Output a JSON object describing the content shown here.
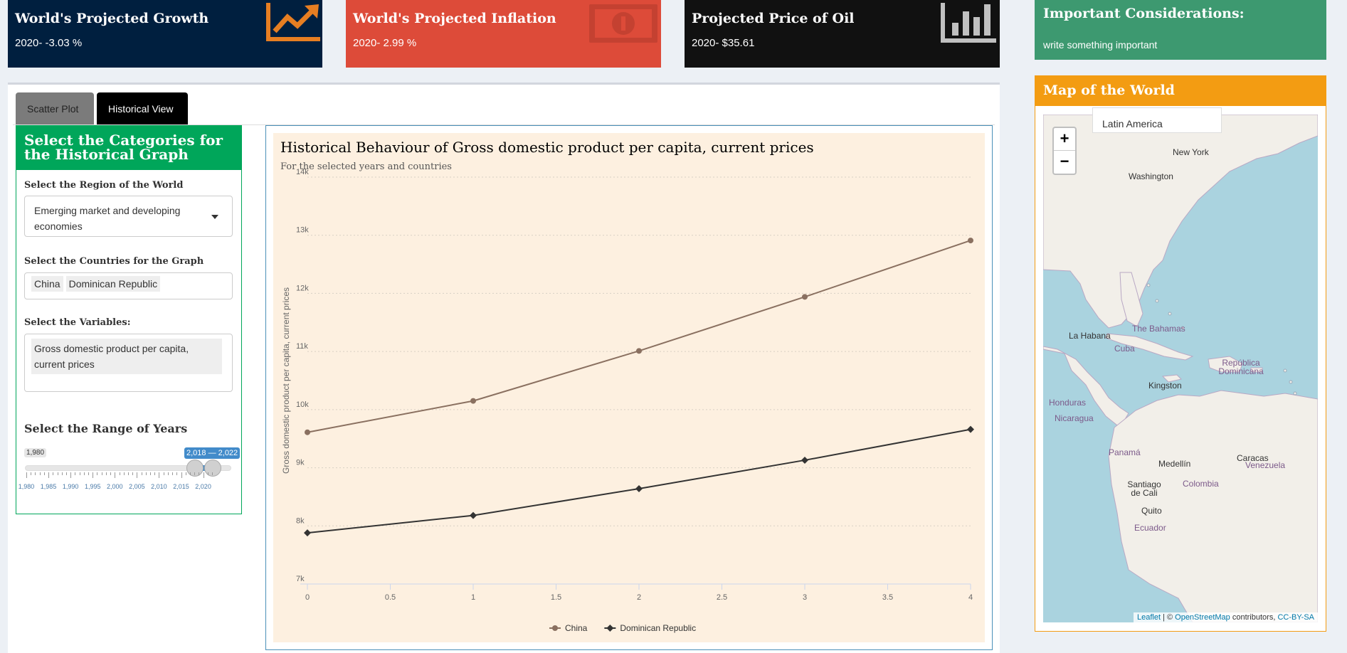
{
  "value_boxes": [
    {
      "title": "World's Projected Growth",
      "value": "2020- -3.03 %",
      "color": "#001f3f",
      "icon": "chart-line-icon"
    },
    {
      "title": "World's Projected Inflation",
      "value": "2020- 2.99 %",
      "color": "#dd4b39",
      "icon": "money-bill-icon"
    },
    {
      "title": "Projected Price of Oil",
      "value": "2020- $35.61",
      "color": "#111111",
      "icon": "bar-chart-icon"
    }
  ],
  "considerations": {
    "title": "Important Considerations:",
    "text": "write something important"
  },
  "map": {
    "title": "Map of the World",
    "tooltip": "Latin America",
    "zoom_in": "+",
    "zoom_out": "−",
    "attribution": {
      "leaflet": "Leaflet",
      "sep": " | © ",
      "osm": "OpenStreetMap",
      "contrib": " contributors, ",
      "license": "CC-BY-SA"
    },
    "labels": [
      "New York",
      "Washington",
      "La Habana",
      "The Bahamas",
      "Cuba",
      "República Dominicana",
      "Kingston",
      "Honduras",
      "Nicaragua",
      "Panamá",
      "Caracas",
      "Medellín",
      "Venezuela",
      "Santiago de Cali",
      "Colombia",
      "Quito",
      "Ecuador"
    ]
  },
  "tabs": [
    {
      "label": "Scatter Plot",
      "active": false
    },
    {
      "label": "Historical View",
      "active": true
    }
  ],
  "sidebar": {
    "title": "Select the Categories for the Historical Graph",
    "region_label": "Select the Region of the World",
    "region_value": "Emerging market and developing economies",
    "countries_label": "Select the Countries for the Graph",
    "countries": [
      "China",
      "Dominican Republic"
    ],
    "variables_label": "Select the Variables:",
    "variables": [
      "Gross domestic product per capita, current prices"
    ],
    "range_label": "Select the Range of Years",
    "range_min": "1,980",
    "range_value": "2,018 — 2,022",
    "range_ticks": [
      "1,980",
      "1,985",
      "1,990",
      "1,995",
      "2,000",
      "2,005",
      "2,010",
      "2,015",
      "2,020"
    ]
  },
  "chart_data": {
    "type": "line",
    "title": "Historical Behaviour of Gross domestic product per capita, current prices",
    "subtitle": "For the selected years and countries",
    "xlabel": "",
    "ylabel": "Gross domestic product per capita, current prices",
    "x": [
      0,
      1,
      2,
      3,
      4
    ],
    "xlim": [
      0,
      4
    ],
    "ylim": [
      7000,
      14000
    ],
    "xticks": [
      "0",
      "0.5",
      "1",
      "1.5",
      "2",
      "2.5",
      "3",
      "3.5",
      "4"
    ],
    "yticks": [
      "7k",
      "8k",
      "9k",
      "10k",
      "11k",
      "12k",
      "13k",
      "14k"
    ],
    "grid": true,
    "legend": "bottom-center",
    "series": [
      {
        "name": "China",
        "values": [
          9610,
          10150,
          11010,
          11940,
          12910
        ],
        "color": "#8a7060",
        "marker": "circle"
      },
      {
        "name": "Dominican Republic",
        "values": [
          7880,
          8180,
          8640,
          9130,
          9660
        ],
        "color": "#333333",
        "marker": "diamond"
      }
    ]
  }
}
